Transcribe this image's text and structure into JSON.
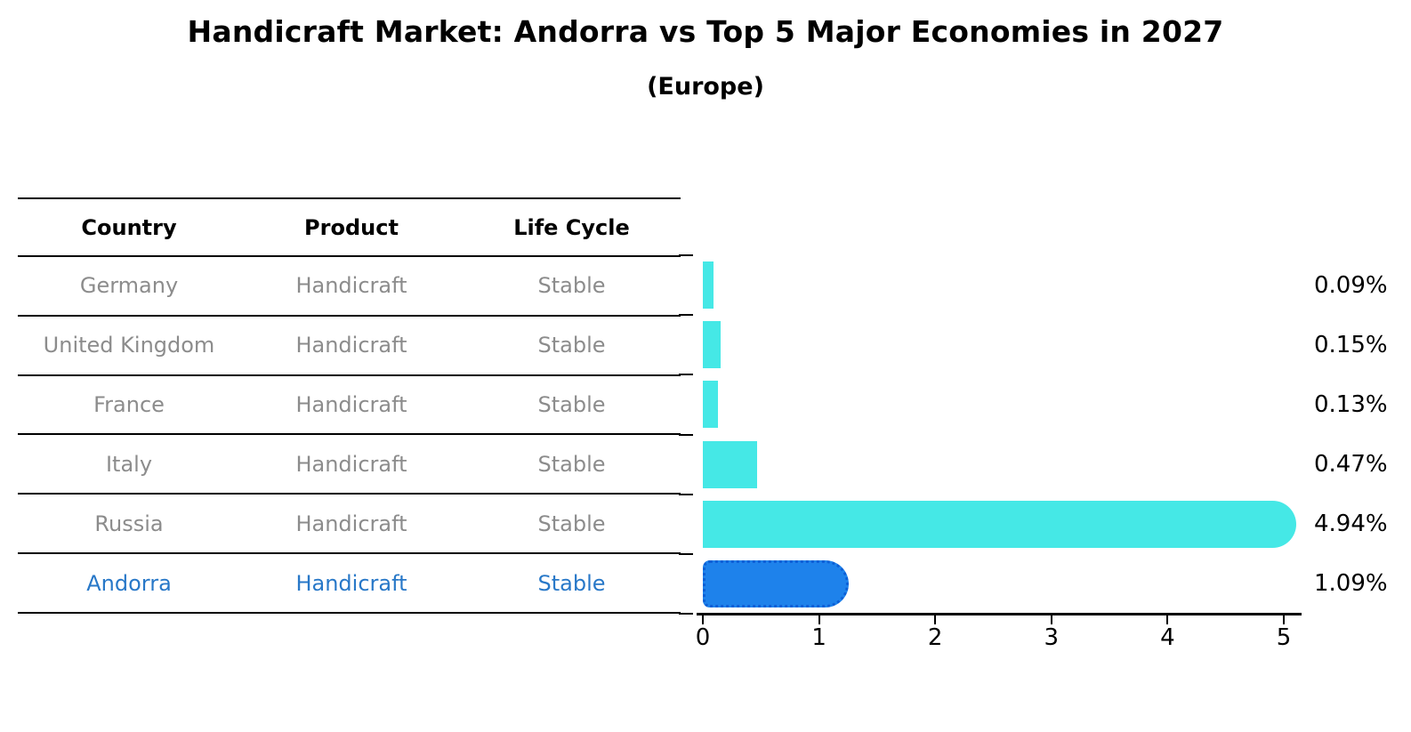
{
  "title": "Handicraft Market: Andorra vs Top 5 Major Economies in 2027",
  "subtitle": "(Europe)",
  "table": {
    "headers": [
      "Country",
      "Product",
      "Life Cycle"
    ],
    "rows": [
      {
        "country": "Germany",
        "product": "Handicraft",
        "life_cycle": "Stable",
        "highlight": false
      },
      {
        "country": "United Kingdom",
        "product": "Handicraft",
        "life_cycle": "Stable",
        "highlight": false
      },
      {
        "country": "France",
        "product": "Handicraft",
        "life_cycle": "Stable",
        "highlight": false
      },
      {
        "country": "Italy",
        "product": "Handicraft",
        "life_cycle": "Stable",
        "highlight": false
      },
      {
        "country": "Russia",
        "product": "Handicraft",
        "life_cycle": "Stable",
        "highlight": false
      },
      {
        "country": "Andorra",
        "product": "Handicraft",
        "life_cycle": "Stable",
        "highlight": true
      }
    ]
  },
  "chart_data": {
    "type": "bar",
    "orientation": "horizontal",
    "categories": [
      "Germany",
      "United Kingdom",
      "France",
      "Italy",
      "Russia",
      "Andorra"
    ],
    "values": [
      0.09,
      0.15,
      0.13,
      0.47,
      4.94,
      1.09
    ],
    "value_labels": [
      "0.09%",
      "0.15%",
      "0.13%",
      "0.47%",
      "4.94%",
      "1.09%"
    ],
    "x_ticks": [
      "0",
      "1",
      "2",
      "3",
      "4",
      "5"
    ],
    "xlim": [
      0,
      5
    ],
    "grid": false,
    "legend": "none",
    "bar_color": "#45e8e6",
    "highlight_bar_color": "#1e82eb",
    "highlight_border_color": "#0c5fd6",
    "highlight_index": 5
  },
  "colors": {
    "table_text": "#8c8c8c",
    "highlight_text": "#2878c8",
    "header_text": "#000000",
    "axis": "#000000",
    "background": "#ffffff"
  }
}
